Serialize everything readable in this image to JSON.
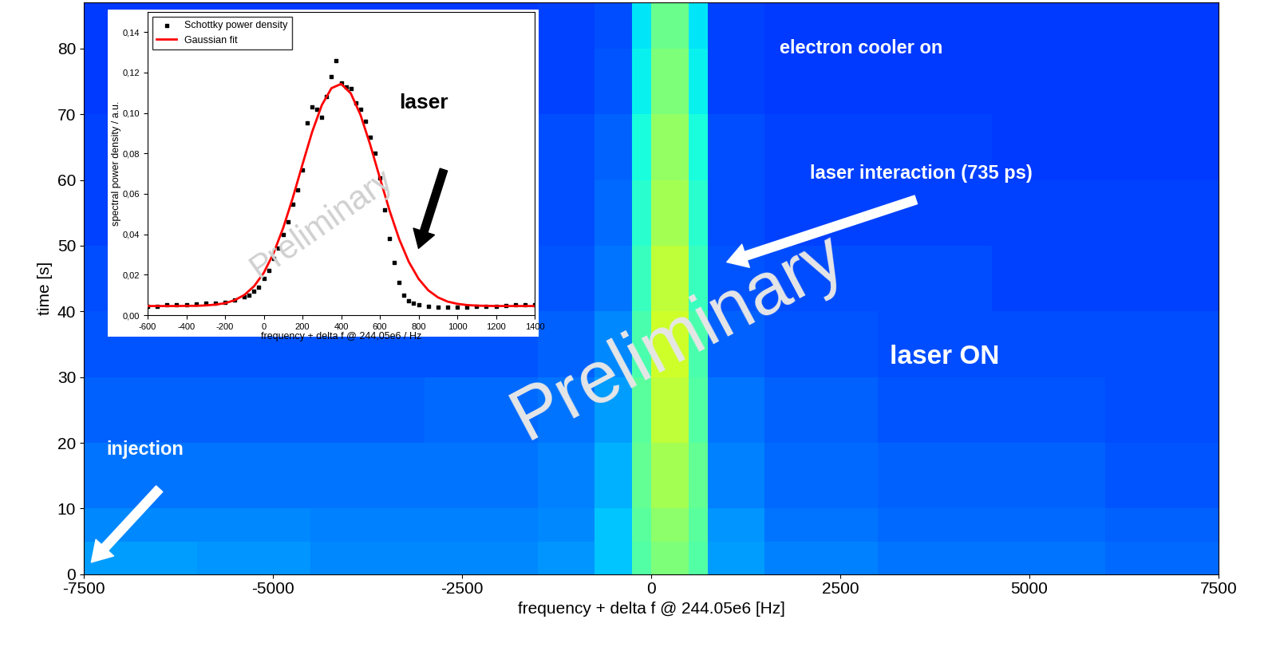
{
  "chart_data": [
    {
      "type": "heatmap",
      "x_label": "frequency + delta f @ 244.05e6 [Hz]",
      "y_label": "time [s]",
      "xlim": [
        -7500,
        7500
      ],
      "ylim": [
        0,
        87
      ],
      "xticks": [
        -7500,
        -5000,
        -2500,
        0,
        2500,
        5000,
        7500
      ],
      "yticks": [
        0,
        10,
        20,
        30,
        40,
        50,
        60,
        70,
        80
      ],
      "x_edges": [
        -7500,
        -6000,
        -4500,
        -3000,
        -1500,
        -750,
        -250,
        0,
        250,
        500,
        750,
        1500,
        3000,
        4500,
        6000,
        7500
      ],
      "y_edges": [
        0,
        5,
        10,
        20,
        30,
        40,
        50,
        60,
        70,
        80,
        87
      ],
      "color_range": [
        0,
        1
      ],
      "cells": [
        [
          0.28,
          0.27,
          0.26,
          0.26,
          0.27,
          0.32,
          0.45,
          0.5,
          0.5,
          0.45,
          0.28,
          0.25,
          0.24,
          0.24,
          0.23
        ],
        [
          0.26,
          0.26,
          0.25,
          0.25,
          0.26,
          0.32,
          0.46,
          0.52,
          0.52,
          0.46,
          0.27,
          0.24,
          0.23,
          0.23,
          0.22
        ],
        [
          0.24,
          0.24,
          0.24,
          0.24,
          0.25,
          0.3,
          0.47,
          0.55,
          0.55,
          0.47,
          0.25,
          0.23,
          0.22,
          0.22,
          0.21
        ],
        [
          0.22,
          0.22,
          0.22,
          0.23,
          0.24,
          0.28,
          0.46,
          0.58,
          0.58,
          0.45,
          0.24,
          0.22,
          0.21,
          0.21,
          0.2
        ],
        [
          0.21,
          0.21,
          0.21,
          0.21,
          0.22,
          0.26,
          0.44,
          0.6,
          0.6,
          0.44,
          0.22,
          0.21,
          0.2,
          0.2,
          0.2
        ],
        [
          0.2,
          0.2,
          0.2,
          0.2,
          0.21,
          0.24,
          0.42,
          0.58,
          0.58,
          0.42,
          0.21,
          0.2,
          0.2,
          0.19,
          0.19
        ],
        [
          0.19,
          0.19,
          0.19,
          0.2,
          0.2,
          0.23,
          0.4,
          0.55,
          0.55,
          0.4,
          0.2,
          0.19,
          0.19,
          0.19,
          0.19
        ],
        [
          0.19,
          0.19,
          0.19,
          0.19,
          0.2,
          0.22,
          0.38,
          0.53,
          0.53,
          0.38,
          0.2,
          0.19,
          0.19,
          0.18,
          0.18
        ],
        [
          0.18,
          0.18,
          0.18,
          0.19,
          0.19,
          0.21,
          0.36,
          0.5,
          0.5,
          0.36,
          0.19,
          0.18,
          0.18,
          0.18,
          0.18
        ],
        [
          0.18,
          0.18,
          0.18,
          0.18,
          0.19,
          0.2,
          0.35,
          0.48,
          0.48,
          0.35,
          0.19,
          0.18,
          0.18,
          0.18,
          0.18
        ]
      ],
      "annotations": [
        {
          "text": "electron cooler on"
        },
        {
          "text": "laser interaction (735 ps)"
        },
        {
          "text": "laser ON"
        },
        {
          "text": "injection"
        },
        {
          "text": "Preliminary"
        }
      ]
    },
    {
      "type": "line",
      "x_label": "frequency + delta f @ 244,05e6 / Hz",
      "y_label": "spectral power density / a.u.",
      "xlim": [
        -600,
        1400
      ],
      "ylim": [
        0,
        0.15
      ],
      "xticks": [
        -600,
        -400,
        -200,
        0,
        200,
        400,
        600,
        800,
        1000,
        1200,
        1400
      ],
      "yticks": [
        {
          "value": 0,
          "label": "0,00"
        },
        {
          "value": 0.02,
          "label": "0,02"
        },
        {
          "value": 0.04,
          "label": "0,04"
        },
        {
          "value": 0.06,
          "label": "0,06"
        },
        {
          "value": 0.08,
          "label": "0,08"
        },
        {
          "value": 0.1,
          "label": "0,10"
        },
        {
          "value": 0.12,
          "label": "0,12"
        },
        {
          "value": 0.14,
          "label": "0,14"
        }
      ],
      "legend": "upper left",
      "series": [
        {
          "name": "Schottky power density",
          "type": "scatter",
          "color": "#000000",
          "marker": "s",
          "x": [
            -600,
            -550,
            -500,
            -450,
            -400,
            -350,
            -300,
            -250,
            -200,
            -150,
            -100,
            -75,
            -50,
            -25,
            0,
            25,
            50,
            75,
            100,
            125,
            150,
            175,
            200,
            225,
            250,
            275,
            300,
            325,
            350,
            375,
            400,
            425,
            450,
            475,
            500,
            525,
            550,
            575,
            600,
            625,
            650,
            675,
            700,
            725,
            750,
            775,
            800,
            850,
            900,
            950,
            1000,
            1050,
            1100,
            1150,
            1200,
            1250,
            1300,
            1350,
            1400
          ],
          "values": [
            0.0045,
            0.0045,
            0.005,
            0.005,
            0.005,
            0.0055,
            0.006,
            0.006,
            0.0065,
            0.0075,
            0.009,
            0.01,
            0.012,
            0.014,
            0.018,
            0.022,
            0.028,
            0.033,
            0.04,
            0.046,
            0.055,
            0.062,
            0.072,
            0.095,
            0.103,
            0.102,
            0.098,
            0.108,
            0.118,
            0.126,
            0.115,
            0.113,
            0.112,
            0.105,
            0.102,
            0.096,
            0.088,
            0.08,
            0.068,
            0.052,
            0.038,
            0.026,
            0.016,
            0.01,
            0.007,
            0.006,
            0.005,
            0.0045,
            0.004,
            0.004,
            0.004,
            0.004,
            0.0042,
            0.0045,
            0.0045,
            0.0048,
            0.005,
            0.005,
            0.005
          ]
        },
        {
          "name": "Gaussian fit",
          "type": "line",
          "color": "#ff0000",
          "line_style": "solid",
          "x": [
            -600,
            -550,
            -500,
            -450,
            -400,
            -350,
            -300,
            -250,
            -200,
            -150,
            -100,
            -50,
            0,
            50,
            100,
            150,
            200,
            250,
            300,
            350,
            400,
            450,
            500,
            550,
            600,
            650,
            700,
            750,
            800,
            850,
            900,
            950,
            1000,
            1050,
            1100,
            1150,
            1200,
            1250,
            1300,
            1350,
            1400
          ],
          "values": [
            0.0045,
            0.0045,
            0.0045,
            0.0045,
            0.0046,
            0.0046,
            0.0048,
            0.0052,
            0.0059,
            0.0074,
            0.01,
            0.0143,
            0.0209,
            0.0305,
            0.043,
            0.058,
            0.0745,
            0.0906,
            0.1039,
            0.1123,
            0.1144,
            0.1097,
            0.0991,
            0.0844,
            0.0679,
            0.0518,
            0.0376,
            0.0263,
            0.018,
            0.0123,
            0.0088,
            0.0067,
            0.0056,
            0.005,
            0.0047,
            0.0046,
            0.0045,
            0.0045,
            0.0045,
            0.0045,
            0.0045
          ]
        }
      ],
      "annotations": [
        {
          "text": "laser"
        },
        {
          "text": "Preliminary"
        }
      ]
    }
  ]
}
